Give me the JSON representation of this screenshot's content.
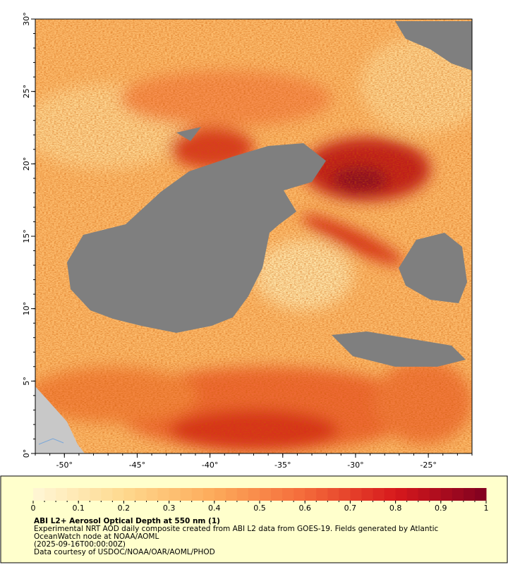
{
  "map": {
    "lon_range": [
      -52,
      -22
    ],
    "lat_range": [
      0,
      30
    ],
    "lon_ticks": [
      {
        "value": -50,
        "label": "-50°"
      },
      {
        "value": -45,
        "label": "-45°"
      },
      {
        "value": -40,
        "label": "-40°"
      },
      {
        "value": -35,
        "label": "-35°"
      },
      {
        "value": -30,
        "label": "-30°"
      },
      {
        "value": -25,
        "label": "-25°"
      }
    ],
    "lat_ticks": [
      {
        "value": 0,
        "label": "0°"
      },
      {
        "value": 5,
        "label": "5°"
      },
      {
        "value": 10,
        "label": "10°"
      },
      {
        "value": 15,
        "label": "15°"
      },
      {
        "value": 20,
        "label": "20°"
      },
      {
        "value": 25,
        "label": "25°"
      },
      {
        "value": 30,
        "label": "30°"
      }
    ]
  },
  "colorbar": {
    "range": [
      0,
      1
    ],
    "ticks": [
      0,
      0.1,
      0.2,
      0.3,
      0.4,
      0.5,
      0.6,
      0.7,
      0.8,
      0.9,
      1
    ]
  },
  "caption": {
    "title": "ABI L2+ Aerosol Optical Depth at 550 nm (1)",
    "lines": [
      "Experimental NRT AOD daily composite created from ABI L2 data from GOES-19. Fields generated by Atlantic",
      "OceanWatch node at NOAA/AOML",
      "(2025-09-16T00:00:00Z)",
      "Data courtesy of USDOC/NOAA/OAR/AOML/PHOD"
    ]
  }
}
